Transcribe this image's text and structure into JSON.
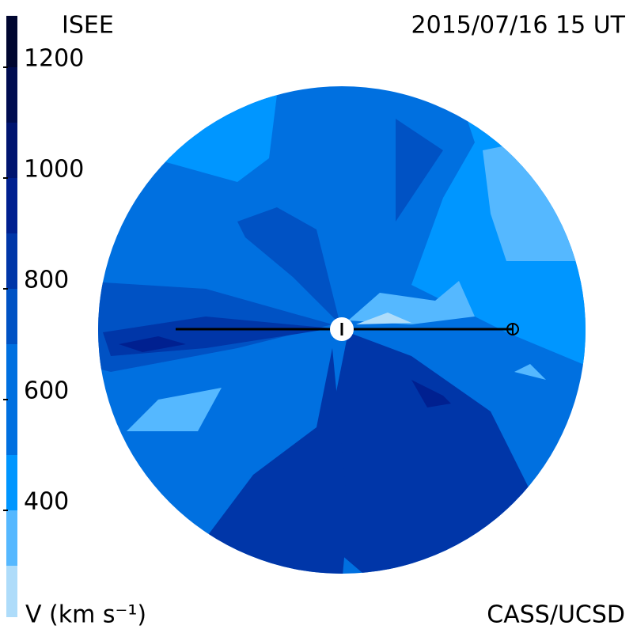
{
  "title": "ISEE",
  "timestamp": "2015/07/16 15 UT",
  "credit": "CASS/UCSD",
  "colorbar": {
    "label": "V (km s⁻¹)",
    "ticks": [
      400,
      600,
      800,
      1000,
      1200
    ]
  }
}
